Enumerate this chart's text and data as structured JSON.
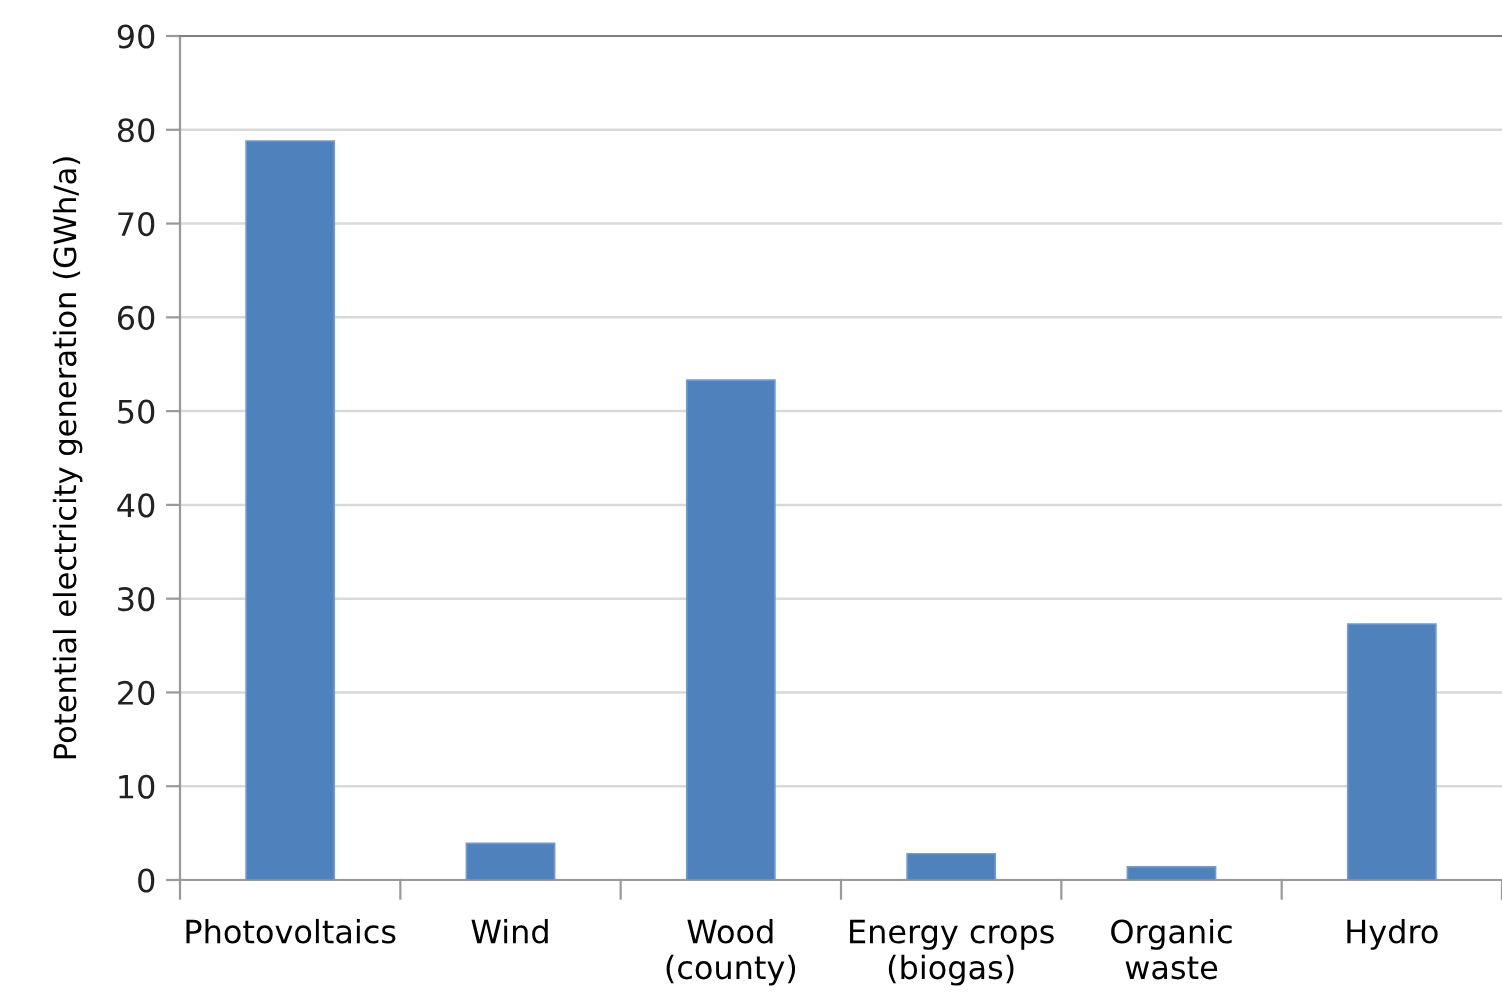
{
  "chart_data": {
    "type": "bar",
    "ylabel": "Potential electricity generation (GWh/a)",
    "categories": [
      "Photovoltaics",
      "Wind",
      "Wood\n(county)",
      "Energy crops\n(biogas)",
      "Organic\nwaste",
      "Hydro"
    ],
    "values": [
      78.8,
      3.9,
      53.3,
      2.8,
      1.4,
      27.3
    ],
    "color": "#4f81bd",
    "ylim": [
      0,
      90
    ],
    "yticks": [
      0,
      10,
      20,
      30,
      40,
      50,
      60,
      70,
      80,
      90
    ],
    "grid": "y"
  }
}
